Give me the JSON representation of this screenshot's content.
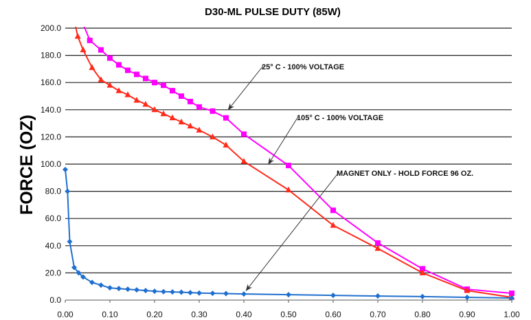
{
  "chart_data": {
    "type": "line",
    "title": "D30-ML PULSE DUTY (85W)",
    "ylabel": "FORCE (OZ)",
    "xlabel": "",
    "xlim": [
      0,
      1
    ],
    "ylim": [
      0,
      200
    ],
    "x_ticks": [
      "0.00",
      "0.10",
      "0.20",
      "0.30",
      "0.40",
      "0.50",
      "0.60",
      "0.70",
      "0.80",
      "0.90",
      "1.00"
    ],
    "y_ticks": [
      "0.0",
      "20.0",
      "40.0",
      "60.0",
      "80.0",
      "100.0",
      "120.0",
      "140.0",
      "160.0",
      "180.0",
      "200.0"
    ],
    "grid": "horizontal",
    "series": [
      {
        "name": "25° C - 100% VOLTAGE",
        "color": "#ff00ff",
        "marker": "square",
        "x": [
          0.035,
          0.055,
          0.08,
          0.1,
          0.12,
          0.14,
          0.16,
          0.18,
          0.2,
          0.22,
          0.24,
          0.26,
          0.28,
          0.3,
          0.33,
          0.36,
          0.4,
          0.5,
          0.6,
          0.7,
          0.8,
          0.9,
          1.0
        ],
        "y": [
          207,
          191,
          184,
          178,
          173,
          169,
          166,
          163,
          160,
          158,
          154,
          150,
          146,
          142,
          139,
          134,
          122,
          99,
          66,
          42,
          23,
          8,
          5
        ]
      },
      {
        "name": "105° C - 100% VOLTAGE",
        "color": "#ff2a1a",
        "marker": "triangle",
        "x": [
          0.022,
          0.028,
          0.04,
          0.06,
          0.08,
          0.1,
          0.12,
          0.14,
          0.16,
          0.18,
          0.2,
          0.22,
          0.24,
          0.26,
          0.28,
          0.3,
          0.33,
          0.36,
          0.4,
          0.5,
          0.6,
          0.7,
          0.8,
          0.9,
          1.0
        ],
        "y": [
          203,
          194,
          184,
          171,
          162,
          158,
          154,
          151,
          147,
          144,
          140,
          137,
          134,
          131,
          128,
          125,
          120,
          114,
          102,
          81,
          55,
          38,
          20,
          7,
          2
        ]
      },
      {
        "name": "MAGNET ONLY - HOLD FORCE 96 OZ.",
        "color": "#1f6fcf",
        "marker": "diamond",
        "x": [
          0.0,
          0.005,
          0.01,
          0.02,
          0.03,
          0.04,
          0.06,
          0.08,
          0.1,
          0.12,
          0.14,
          0.16,
          0.18,
          0.2,
          0.22,
          0.24,
          0.26,
          0.28,
          0.3,
          0.33,
          0.36,
          0.4,
          0.5,
          0.6,
          0.7,
          0.8,
          0.9,
          1.0
        ],
        "y": [
          96,
          80,
          43,
          24,
          20,
          17,
          13,
          11,
          9,
          8.5,
          8,
          7.5,
          7,
          6.5,
          6.2,
          6,
          5.8,
          5.5,
          5.2,
          5,
          4.8,
          4.5,
          4,
          3.5,
          3,
          2.6,
          2,
          1.5
        ]
      }
    ],
    "annotations": [
      {
        "text": "25° C - 100% VOLTAGE",
        "target_x": 0.365,
        "target_y": 140
      },
      {
        "text": "105° C - 100% VOLTAGE",
        "target_x": 0.455,
        "target_y": 100
      },
      {
        "text": "MAGNET ONLY - HOLD FORCE 96 OZ.",
        "target_x": 0.405,
        "target_y": 7
      }
    ]
  }
}
